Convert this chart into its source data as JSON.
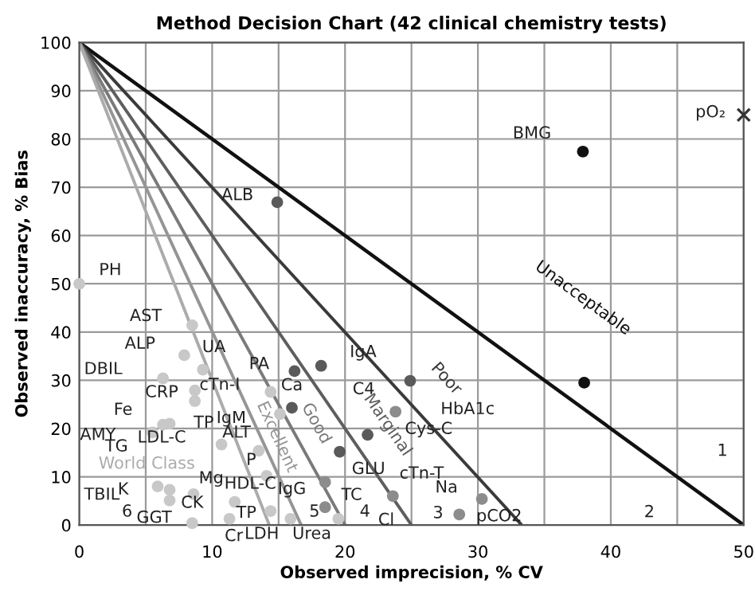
{
  "chart_data": {
    "type": "scatter",
    "title": "Method Decision Chart (42 clinical chemistry tests)",
    "xlabel": "Observed imprecision, % CV",
    "ylabel": "Observed inaccuracy, % Bias",
    "xlim": [
      0,
      50
    ],
    "ylim": [
      0,
      100
    ],
    "xticks": [
      0,
      {
        "value": 5,
        "label": null
      },
      10,
      {
        "value": 15,
        "label": null
      },
      20,
      {
        "value": 25,
        "label": null
      },
      30,
      {
        "value": 35,
        "label": null
      },
      40,
      {
        "value": 45,
        "label": null
      },
      50
    ],
    "yticks": [
      0,
      10,
      20,
      30,
      40,
      50,
      60,
      70,
      80,
      90,
      100
    ],
    "grid": true,
    "series": [
      {
        "name": "Unacceptable",
        "type": "line",
        "color": "#111111",
        "x": [
          0,
          50
        ],
        "values": [
          100,
          0
        ]
      },
      {
        "name": "Poor",
        "type": "line",
        "color": "#3a3a3a",
        "x": [
          0,
          33.3
        ],
        "values": [
          100,
          0
        ]
      },
      {
        "name": "Marginal",
        "type": "line",
        "color": "#5e5e5e",
        "x": [
          0,
          25
        ],
        "values": [
          100,
          0
        ]
      },
      {
        "name": "Good",
        "type": "line",
        "color": "#7a7a7a",
        "x": [
          0,
          20
        ],
        "values": [
          100,
          0
        ]
      },
      {
        "name": "Excellent",
        "type": "line",
        "color": "#959595",
        "x": [
          0,
          16.7
        ],
        "values": [
          100,
          0
        ]
      },
      {
        "name": "World Class",
        "type": "line",
        "color": "#ababab",
        "x": [
          0,
          14.3
        ],
        "values": [
          100,
          0
        ]
      },
      {
        "marker": "circle",
        "color": "#c8c8c8",
        "x": [
          0,
          8.5,
          7.9,
          9.3,
          6.3,
          8.7,
          8.7,
          14.4,
          15.1,
          6.3,
          6.8,
          5.5,
          10.7,
          13.5,
          14.1,
          5.9,
          6.8,
          8.6,
          6.8,
          11.7,
          14.4,
          11.3,
          8.5,
          15.9,
          19.5
        ],
        "values": [
          50,
          41.4,
          35.2,
          32.2,
          30.4,
          27.9,
          25.7,
          27.6,
          23.0,
          20.8,
          21.0,
          19.2,
          16.7,
          15.4,
          10.2,
          8.0,
          7.3,
          6.4,
          5.1,
          4.8,
          2.9,
          1.3,
          0.4,
          1.3,
          1.3
        ]
      },
      {
        "marker": "circle",
        "color": "#8c8c8c",
        "x": [
          18.5,
          18.5,
          23.8,
          23.6,
          30.3,
          28.6
        ],
        "values": [
          8.9,
          3.7,
          23.5,
          6.0,
          5.4,
          2.2
        ]
      },
      {
        "marker": "circle",
        "color": "#5a5a5a",
        "x": [
          14.9,
          16.2,
          18.2,
          16.0,
          19.6,
          21.7,
          24.9
        ],
        "values": [
          66.9,
          31.9,
          33.0,
          24.3,
          15.2,
          18.7,
          29.9
        ]
      },
      {
        "marker": "circle",
        "color": "#111111",
        "x": [
          37.9,
          38.0
        ],
        "values": [
          77.4,
          29.5
        ]
      },
      {
        "marker": "cross",
        "color": "#333333",
        "x": [
          50
        ],
        "values": [
          85
        ]
      }
    ],
    "annotations": [
      {
        "text": "PH",
        "x": 0,
        "y": 50
      },
      {
        "text": "ALB",
        "x": 14.9,
        "y": 66.9
      },
      {
        "text": "BMG",
        "x": 37.9,
        "y": 77.4
      },
      {
        "text": "pO₂",
        "x": 50,
        "y": 85
      },
      {
        "text": "AST",
        "x": 8.5,
        "y": 41.4
      },
      {
        "text": "ALP",
        "x": 7.9,
        "y": 35.2
      },
      {
        "text": "UA",
        "x": 9.3,
        "y": 32.2
      },
      {
        "text": "DBIL",
        "x": 6.3,
        "y": 30.4
      },
      {
        "text": "CRP",
        "x": 8.7,
        "y": 27.9
      },
      {
        "text": "cTn-I",
        "x": 14.4,
        "y": 27.6
      },
      {
        "text": "PA",
        "x": 16.2,
        "y": 31.9
      },
      {
        "text": "IgA",
        "x": 18.2,
        "y": 33.0
      },
      {
        "text": "Ca",
        "x": 16.0,
        "y": 24.3
      },
      {
        "text": "TP",
        "x": 8.7,
        "y": 25.7
      },
      {
        "text": "IgM",
        "x": 15.1,
        "y": 23.0
      },
      {
        "text": "TG",
        "x": 6.3,
        "y": 20.8
      },
      {
        "text": "LDL-C",
        "x": 10.7,
        "y": 16.7
      },
      {
        "text": "ALT",
        "x": 13.5,
        "y": 15.4
      },
      {
        "text": "P",
        "x": 14.1,
        "y": 10.2
      },
      {
        "text": "GLU",
        "x": 19.6,
        "y": 15.2
      },
      {
        "text": "Mg",
        "x": 8.6,
        "y": 6.4
      },
      {
        "text": "HDL-C",
        "x": 11.7,
        "y": 4.8
      },
      {
        "text": "K",
        "x": 6.8,
        "y": 7.3
      },
      {
        "text": "TC",
        "x": 18.5,
        "y": 8.9
      },
      {
        "text": "IgG",
        "x": 18.5,
        "y": 3.7
      },
      {
        "text": "GGT",
        "x": 6.8,
        "y": 5.1
      },
      {
        "text": "CK",
        "x": 8.5,
        "y": 0.4
      },
      {
        "text": "TP",
        "x": 14.4,
        "y": 2.9
      },
      {
        "text": "Cr",
        "x": 11.3,
        "y": 1.3
      },
      {
        "text": "LDH",
        "x": 15.9,
        "y": 1.3
      },
      {
        "text": "Urea",
        "x": 19.5,
        "y": 1.3
      },
      {
        "text": "C4",
        "x": 24.9,
        "y": 29.9
      },
      {
        "text": "HbA1c",
        "x": 24.9,
        "y": 29.9
      },
      {
        "text": "Cys-C",
        "x": 23.8,
        "y": 23.5
      },
      {
        "text": "cTn-T",
        "x": 23.6,
        "y": 6.0
      },
      {
        "text": "Na",
        "x": 30.3,
        "y": 5.4
      },
      {
        "text": "Cl",
        "x": 23.6,
        "y": 6.0
      },
      {
        "text": "pCO2",
        "x": 28.6,
        "y": 2.2
      },
      "Fe",
      "AMY",
      "TBIL",
      "1",
      "2",
      "3",
      "4",
      "5",
      "6"
    ]
  }
}
